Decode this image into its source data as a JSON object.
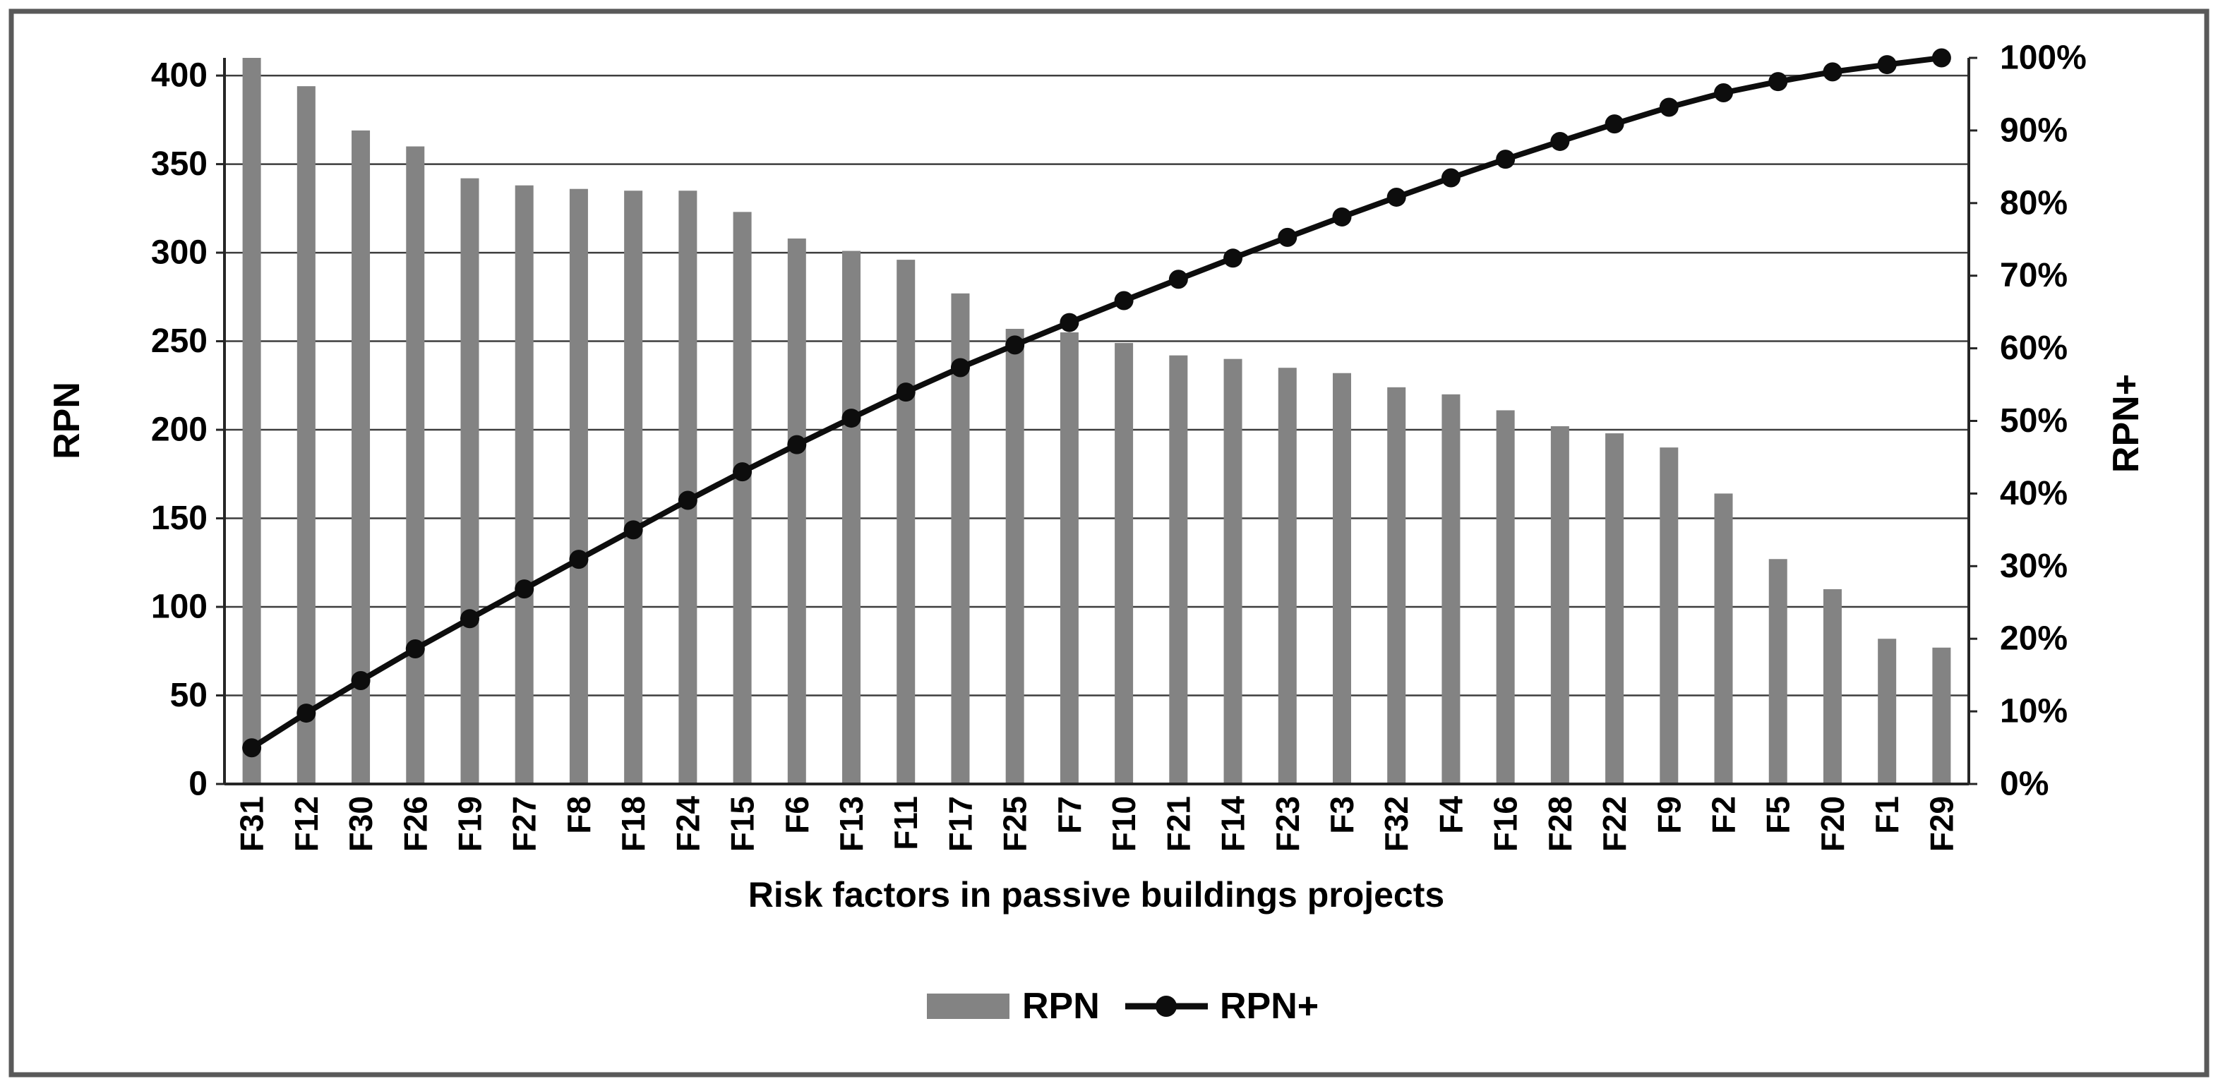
{
  "chart_data": {
    "type": "bar+line (Pareto)",
    "categories": [
      "F31",
      "F12",
      "F30",
      "F26",
      "F19",
      "F27",
      "F8",
      "F18",
      "F24",
      "F15",
      "F6",
      "F13",
      "F11",
      "F17",
      "F25",
      "F7",
      "F10",
      "F21",
      "F14",
      "F23",
      "F3",
      "F32",
      "F4",
      "F16",
      "F28",
      "F22",
      "F9",
      "F2",
      "F5",
      "F20",
      "F1",
      "F29"
    ],
    "series": [
      {
        "name": "RPN",
        "type": "bar",
        "axis": "left",
        "values": [
          410,
          394,
          369,
          360,
          342,
          338,
          336,
          335,
          335,
          323,
          308,
          301,
          296,
          277,
          257,
          255,
          249,
          242,
          240,
          235,
          232,
          224,
          220,
          211,
          202,
          198,
          190,
          164,
          127,
          110,
          82,
          77
        ]
      },
      {
        "name": "RPN+",
        "type": "line",
        "axis": "right",
        "unit": "%",
        "values": [
          4.98,
          9.76,
          14.24,
          18.61,
          22.76,
          26.86,
          30.94,
          35.0,
          39.07,
          42.99,
          46.73,
          50.38,
          53.97,
          57.34,
          60.46,
          63.55,
          66.57,
          69.51,
          72.42,
          75.28,
          78.09,
          80.81,
          83.48,
          86.04,
          88.49,
          90.9,
          93.2,
          95.19,
          96.73,
          98.07,
          99.07,
          100.0
        ]
      }
    ],
    "title": "",
    "xlabel": "Risk factors in passive buildings projects",
    "ylabel_left": "RPN",
    "ylabel_right": "RPN+",
    "ylim_left": [
      0,
      410
    ],
    "ylim_right_percent": [
      0,
      100
    ],
    "left_ticks": [
      0,
      50,
      100,
      150,
      200,
      250,
      300,
      350,
      400
    ],
    "left_tick_labels": [
      "0",
      "50",
      "100",
      "150",
      "200",
      "250",
      "300",
      "350",
      "400"
    ],
    "right_ticks_percent": [
      0,
      10,
      20,
      30,
      40,
      50,
      60,
      70,
      80,
      90,
      100
    ],
    "right_tick_labels": [
      "0%",
      "10%",
      "20%",
      "30%",
      "40%",
      "50%",
      "60%",
      "70%",
      "80%",
      "90%",
      "100%"
    ],
    "grid": true,
    "legend_position": "bottom",
    "legend_entries": [
      "RPN",
      "RPN+"
    ]
  },
  "axes_titles": {
    "left": "RPN",
    "right": "RPN+",
    "x": "Risk factors in passive buildings projects"
  },
  "legend": {
    "rpn": "RPN",
    "rpn_plus": "RPN+"
  },
  "colors": {
    "bar": "#838383",
    "line": "#0d0d0d",
    "marker": "#0d0d0d",
    "grid": "#3d3d3d",
    "axis": "#262626",
    "border": "#595959",
    "text": "#000000",
    "background": "#ffffff"
  }
}
